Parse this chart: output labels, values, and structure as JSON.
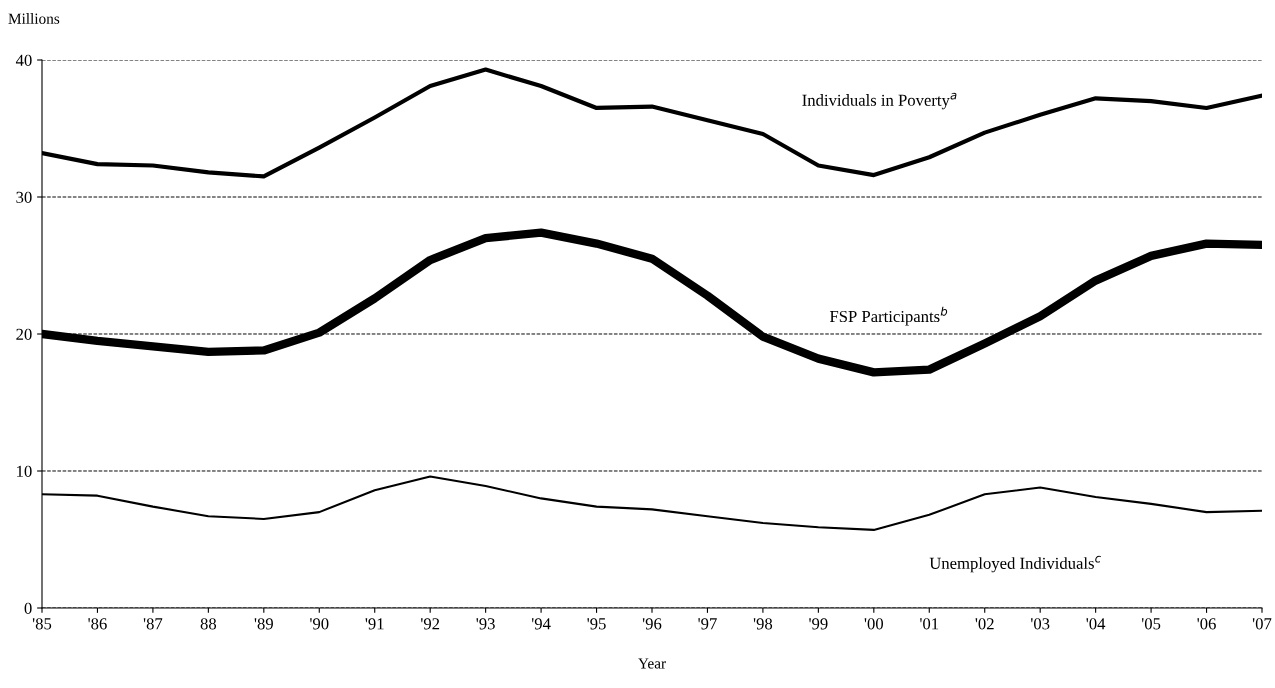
{
  "chart_data": {
    "type": "line",
    "ylabel": "Millions",
    "xlabel": "Year",
    "categories": [
      "'85",
      "'86",
      "'87",
      "88",
      "'89",
      "'90",
      "'91",
      "'92",
      "'93",
      "'94",
      "'95",
      "'96",
      "'97",
      "'98",
      "'99",
      "'00",
      "'01",
      "'02",
      "'03",
      "'04",
      "'05",
      "'06",
      "'07"
    ],
    "series": [
      {
        "name": "Individuals in Poverty$^{a}$",
        "color": "#000000",
        "values": [
          33.2,
          32.4,
          32.3,
          31.8,
          31.5,
          33.6,
          35.8,
          38.1,
          39.3,
          38.1,
          36.5,
          36.6,
          35.6,
          34.6,
          32.3,
          31.6,
          32.9,
          34.7,
          36.0,
          37.2,
          37.0,
          36.5,
          37.4
        ]
      },
      {
        "name": "FSP Participants$^{b}$",
        "color": "#000000",
        "values": [
          20.0,
          19.5,
          19.1,
          18.7,
          18.8,
          20.1,
          22.6,
          25.4,
          27.0,
          27.4,
          26.6,
          25.5,
          22.8,
          19.8,
          18.2,
          17.2,
          17.4,
          19.3,
          21.3,
          23.9,
          25.7,
          26.6,
          26.5
        ]
      },
      {
        "name": "Unemployed Individuals$^{c}$",
        "color": "#000000",
        "values": [
          8.3,
          8.2,
          7.4,
          6.7,
          6.5,
          7.0,
          8.6,
          9.6,
          8.9,
          8.0,
          7.4,
          7.2,
          6.7,
          6.2,
          5.9,
          5.7,
          6.8,
          8.3,
          8.8,
          8.1,
          7.6,
          7.0,
          7.1
        ]
      }
    ],
    "ylim": [
      0,
      40
    ],
    "yticks": [
      0,
      10,
      20,
      30,
      40
    ],
    "grid": "y",
    "legend": false,
    "marker": "none",
    "line_style": "solid"
  }
}
